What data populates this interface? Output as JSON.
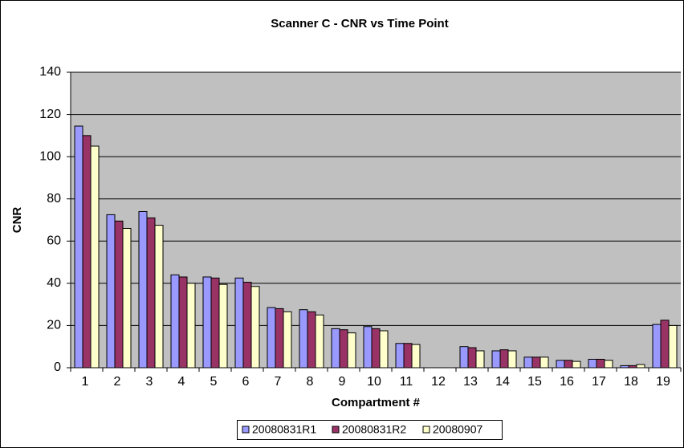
{
  "chart_data": {
    "type": "bar",
    "title": "Scanner C - CNR vs Time Point",
    "x_label": "Compartment #",
    "y_label": "CNR",
    "categories": [
      "1",
      "2",
      "3",
      "4",
      "5",
      "6",
      "7",
      "8",
      "9",
      "10",
      "11",
      "12",
      "13",
      "14",
      "15",
      "16",
      "17",
      "18",
      "19"
    ],
    "series": [
      {
        "name": "20080831R1",
        "color": "#9999ff",
        "values": [
          114.5,
          72.5,
          74,
          44,
          43,
          42.5,
          28.5,
          27.5,
          18.5,
          19.5,
          11.5,
          null,
          10,
          8,
          5,
          3.5,
          4,
          1,
          20.5
        ]
      },
      {
        "name": "20080831R2",
        "color": "#993366",
        "values": [
          110,
          69.5,
          71,
          43,
          42.5,
          40.5,
          28,
          26.5,
          18,
          18.5,
          11.5,
          null,
          9.5,
          8.5,
          5,
          3.5,
          4,
          1,
          22.5
        ]
      },
      {
        "name": "20080907",
        "color": "#ffffcc",
        "values": [
          105,
          66,
          67.5,
          40,
          39.5,
          38.5,
          26.5,
          25,
          16.5,
          17.5,
          11,
          null,
          8,
          8,
          5,
          3,
          3.5,
          1.5,
          20
        ]
      }
    ],
    "ylim": [
      0,
      140
    ],
    "yticks": [
      0,
      20,
      40,
      60,
      80,
      100,
      120,
      140
    ],
    "grid": true,
    "legend": "bottom"
  }
}
